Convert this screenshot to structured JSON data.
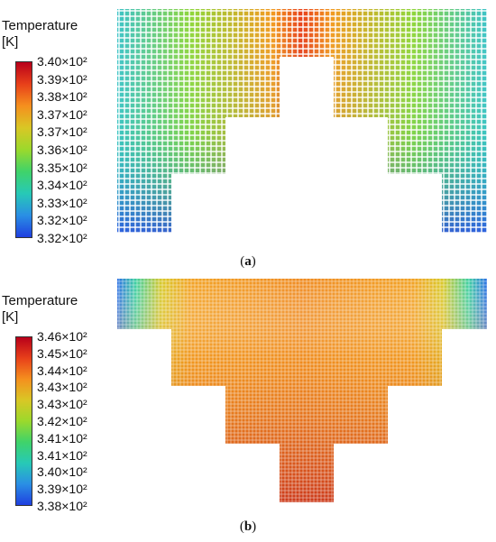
{
  "panels": [
    {
      "legend_title": "Temperature\n[K]",
      "ticks": [
        "3.40×10²",
        "3.39×10²",
        "3.38×10²",
        "3.37×10²",
        "3.37×10²",
        "3.36×10²",
        "3.35×10²",
        "3.34×10²",
        "3.33×10²",
        "3.32×10²",
        "3.32×10²"
      ],
      "colormap": [
        "#b8001a",
        "#e8401a",
        "#f5901e",
        "#d9c725",
        "#9bd92c",
        "#3fd36a",
        "#27c9b6",
        "#2a8fe4",
        "#1f3fe0"
      ],
      "caption_letter": "a"
    },
    {
      "legend_title": "Temperature\n[K]",
      "ticks": [
        "3.46×10²",
        "3.45×10²",
        "3.44×10²",
        "3.43×10²",
        "3.43×10²",
        "3.42×10²",
        "3.41×10²",
        "3.41×10²",
        "3.40×10²",
        "3.39×10²",
        "3.38×10²"
      ],
      "colormap": [
        "#b8001a",
        "#e8401a",
        "#f5901e",
        "#d9c725",
        "#9bd92c",
        "#3fd36a",
        "#27c9b6",
        "#2a8fe4",
        "#1f3fe0"
      ],
      "caption_letter": "b"
    }
  ]
}
